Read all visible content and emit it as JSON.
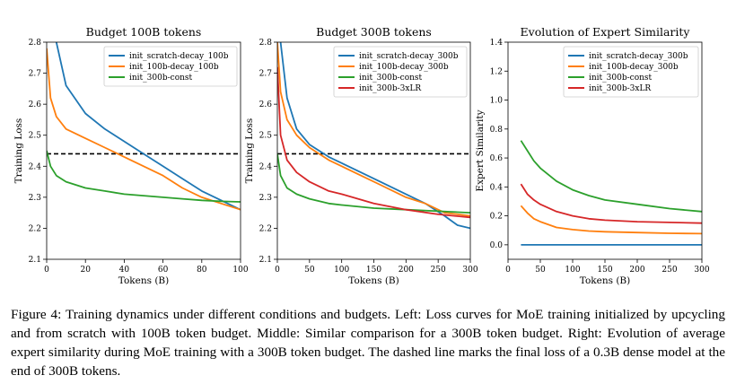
{
  "caption": "Figure 4: Training dynamics under different conditions and budgets. Left: Loss curves for MoE training initialized by upcycling and from scratch with 100B token budget. Middle: Similar comparison for a 300B token budget. Right: Evolution of average expert similarity during MoE training with a 300B token budget. The dashed line marks the final loss of a 0.3B dense model at the end of 300B tokens.",
  "chart_data": [
    {
      "type": "line",
      "title": "Budget 100B tokens",
      "xlabel": "Tokens (B)",
      "ylabel": "Training Loss",
      "xlim": [
        0,
        100
      ],
      "ylim": [
        2.1,
        2.8
      ],
      "xticks": [
        "0",
        "20",
        "40",
        "60",
        "80",
        "100"
      ],
      "yticks": [
        "2.1",
        "2.2",
        "2.3",
        "2.4",
        "2.5",
        "2.6",
        "2.7",
        "2.8"
      ],
      "legend_position": "top-right",
      "reference_line": {
        "y": 2.44,
        "style": "dashed",
        "color": "#000000"
      },
      "series": [
        {
          "name": "init_scratch-decay_100b",
          "color": "#1f77b4",
          "x": [
            0,
            5,
            10,
            20,
            30,
            40,
            50,
            60,
            70,
            80,
            90,
            100
          ],
          "y": [
            3.2,
            2.8,
            2.66,
            2.57,
            2.52,
            2.48,
            2.44,
            2.4,
            2.36,
            2.32,
            2.29,
            2.26
          ]
        },
        {
          "name": "init_100b-decay_100b",
          "color": "#ff7f0e",
          "x": [
            0,
            2,
            5,
            10,
            20,
            30,
            40,
            50,
            60,
            70,
            80,
            90,
            100
          ],
          "y": [
            2.78,
            2.62,
            2.56,
            2.52,
            2.49,
            2.46,
            2.43,
            2.4,
            2.37,
            2.33,
            2.3,
            2.28,
            2.26
          ]
        },
        {
          "name": "init_300b-const",
          "color": "#2ca02c",
          "x": [
            0,
            2,
            5,
            10,
            20,
            30,
            40,
            50,
            60,
            70,
            80,
            90,
            100
          ],
          "y": [
            2.45,
            2.4,
            2.37,
            2.35,
            2.33,
            2.32,
            2.31,
            2.305,
            2.3,
            2.295,
            2.29,
            2.287,
            2.285
          ]
        }
      ]
    },
    {
      "type": "line",
      "title": "Budget 300B tokens",
      "xlabel": "Tokens (B)",
      "ylabel": "Training Loss",
      "xlim": [
        0,
        300
      ],
      "ylim": [
        2.1,
        2.8
      ],
      "xticks": [
        "0",
        "50",
        "100",
        "150",
        "200",
        "250",
        "300"
      ],
      "yticks": [
        "2.1",
        "2.2",
        "2.3",
        "2.4",
        "2.5",
        "2.6",
        "2.7",
        "2.8"
      ],
      "legend_position": "top-right",
      "reference_line": {
        "y": 2.44,
        "style": "dashed",
        "color": "#000000"
      },
      "series": [
        {
          "name": "init_scratch-decay_300b",
          "color": "#1f77b4",
          "x": [
            5,
            15,
            30,
            50,
            80,
            100,
            130,
            160,
            200,
            230,
            260,
            280,
            300
          ],
          "y": [
            2.8,
            2.62,
            2.52,
            2.47,
            2.43,
            2.41,
            2.38,
            2.35,
            2.31,
            2.28,
            2.24,
            2.21,
            2.2
          ]
        },
        {
          "name": "init_100b-decay_300b",
          "color": "#ff7f0e",
          "x": [
            0,
            5,
            15,
            30,
            50,
            80,
            100,
            130,
            160,
            200,
            230,
            260,
            300
          ],
          "y": [
            2.8,
            2.64,
            2.55,
            2.5,
            2.46,
            2.42,
            2.4,
            2.37,
            2.34,
            2.3,
            2.28,
            2.25,
            2.24
          ]
        },
        {
          "name": "init_300b-const",
          "color": "#2ca02c",
          "x": [
            0,
            5,
            15,
            30,
            50,
            80,
            100,
            150,
            200,
            250,
            300
          ],
          "y": [
            2.44,
            2.37,
            2.33,
            2.31,
            2.295,
            2.28,
            2.275,
            2.265,
            2.26,
            2.255,
            2.25
          ]
        },
        {
          "name": "init_300b-3xLR",
          "color": "#d62728",
          "x": [
            0,
            5,
            15,
            30,
            50,
            80,
            100,
            150,
            200,
            250,
            300
          ],
          "y": [
            2.72,
            2.5,
            2.42,
            2.38,
            2.35,
            2.32,
            2.31,
            2.28,
            2.26,
            2.245,
            2.235
          ]
        }
      ]
    },
    {
      "type": "line",
      "title": "Evolution of Expert Similarity",
      "xlabel": "Tokens (B)",
      "ylabel": "Expert Similarity",
      "xlim": [
        0,
        300
      ],
      "ylim": [
        -0.1,
        1.4
      ],
      "xticks": [
        "0",
        "50",
        "100",
        "150",
        "200",
        "250",
        "300"
      ],
      "yticks": [
        "0.0",
        "0.2",
        "0.4",
        "0.6",
        "0.8",
        "1.0",
        "1.2",
        "1.4"
      ],
      "legend_position": "top-right",
      "series": [
        {
          "name": "init_scratch-decay_300b",
          "color": "#1f77b4",
          "x": [
            20,
            300
          ],
          "y": [
            0.0,
            0.0
          ]
        },
        {
          "name": "init_100b-decay_300b",
          "color": "#ff7f0e",
          "x": [
            20,
            30,
            40,
            50,
            75,
            100,
            125,
            150,
            200,
            250,
            300
          ],
          "y": [
            0.27,
            0.22,
            0.18,
            0.16,
            0.12,
            0.105,
            0.095,
            0.09,
            0.085,
            0.08,
            0.077
          ]
        },
        {
          "name": "init_300b-const",
          "color": "#2ca02c",
          "x": [
            20,
            30,
            40,
            50,
            75,
            100,
            125,
            150,
            200,
            250,
            300
          ],
          "y": [
            0.72,
            0.65,
            0.58,
            0.53,
            0.44,
            0.38,
            0.34,
            0.31,
            0.28,
            0.25,
            0.23
          ]
        },
        {
          "name": "init_300b-3xLR",
          "color": "#d62728",
          "x": [
            20,
            30,
            40,
            50,
            75,
            100,
            125,
            150,
            200,
            250,
            300
          ],
          "y": [
            0.42,
            0.35,
            0.31,
            0.28,
            0.23,
            0.2,
            0.18,
            0.17,
            0.16,
            0.155,
            0.15
          ]
        }
      ]
    }
  ]
}
